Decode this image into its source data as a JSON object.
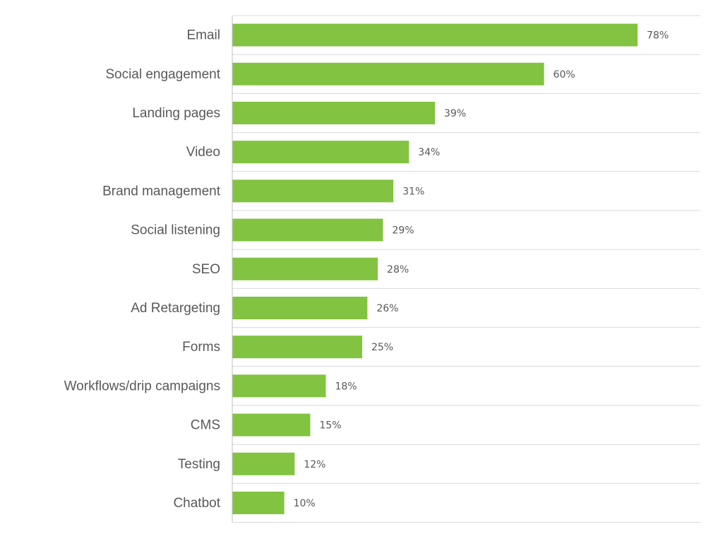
{
  "chart_data": {
    "type": "bar",
    "orientation": "horizontal",
    "title": "",
    "xlabel": "",
    "ylabel": "",
    "categories": [
      "Email",
      "Social engagement",
      "Landing pages",
      "Video",
      "Brand management",
      "Social listening",
      "SEO",
      "Ad Retargeting",
      "Forms",
      "Workflows/drip campaigns",
      "CMS",
      "Testing",
      "Chatbot"
    ],
    "values": [
      78,
      60,
      39,
      34,
      31,
      29,
      28,
      26,
      25,
      18,
      15,
      12,
      10
    ],
    "value_labels": [
      "78%",
      "60%",
      "39%",
      "34%",
      "31%",
      "29%",
      "28%",
      "26%",
      "25%",
      "18%",
      "15%",
      "12%",
      "10%"
    ],
    "unit": "%",
    "xlim": [
      0,
      90
    ],
    "grid": true,
    "legend": "none",
    "bar_color": "#82c341",
    "grid_color": "#d9d9d9",
    "text_color": "#595959"
  }
}
